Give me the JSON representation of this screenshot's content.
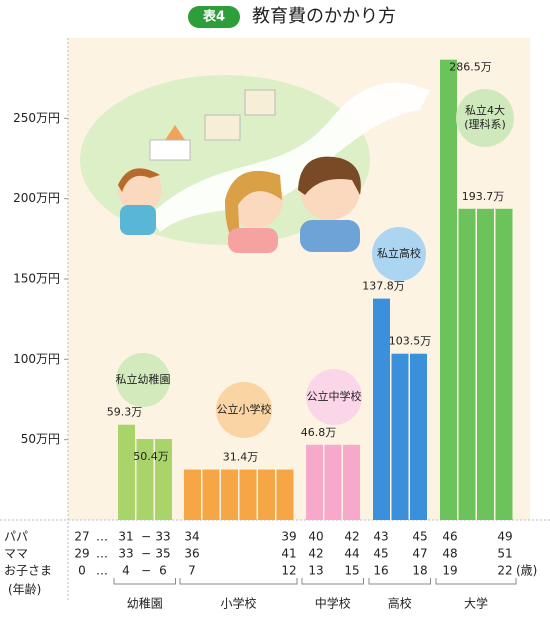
{
  "chart_data": {
    "type": "bar",
    "badge": "表4",
    "title": "教育費のかかり方",
    "ylim": [
      0,
      300
    ],
    "yticks": [
      {
        "value": 50,
        "label": "50万円"
      },
      {
        "value": 100,
        "label": "100万円"
      },
      {
        "value": 150,
        "label": "150万円"
      },
      {
        "value": 200,
        "label": "200万円"
      },
      {
        "value": 250,
        "label": "250万円"
      }
    ],
    "groups": [
      {
        "name": "幼稚園",
        "bubble": [
          "私立幼稚園"
        ],
        "color": "#a9d46a",
        "bubble_color": "#d3eabd",
        "values": [
          59.3,
          50.4,
          50.4
        ],
        "value_labels": [
          "59.3万",
          "50.4万",
          null
        ]
      },
      {
        "name": "小学校",
        "bubble": [
          "公立小学校"
        ],
        "color": "#f7a646",
        "bubble_color": "#fbd4a3",
        "values": [
          31.4,
          31.4,
          31.4,
          31.4,
          31.4,
          31.4
        ],
        "value_labels": [
          null,
          null,
          "31.4万",
          null,
          null,
          null
        ]
      },
      {
        "name": "中学校",
        "bubble": [
          "公立中学校"
        ],
        "color": "#f8a9cb",
        "bubble_color": "#fbd6e8",
        "values": [
          46.8,
          46.8,
          46.8
        ],
        "value_labels": [
          "46.8万",
          null,
          null
        ]
      },
      {
        "name": "高校",
        "bubble": [
          "私立高校"
        ],
        "color": "#3b90dc",
        "bubble_color": "#acd5f2",
        "values": [
          137.8,
          103.5,
          103.5
        ],
        "value_labels": [
          "137.8万",
          "103.5万",
          null
        ]
      },
      {
        "name": "大学",
        "bubble": [
          "私立4大",
          "(理科系)"
        ],
        "color": "#6dc35b",
        "bubble_color": "#cfe9bd",
        "values": [
          286.5,
          193.7,
          193.7,
          193.7
        ],
        "value_labels": [
          "286.5万",
          "193.7万",
          null,
          null
        ]
      }
    ],
    "age_rows": [
      {
        "label": "パパ",
        "cells": [
          "27",
          "…",
          "31",
          "−",
          "33",
          "34",
          "39",
          "40",
          "42",
          "43",
          "45",
          "46",
          "49"
        ]
      },
      {
        "label": "ママ",
        "cells": [
          "29",
          "…",
          "33",
          "−",
          "35",
          "36",
          "41",
          "42",
          "44",
          "45",
          "47",
          "48",
          "51"
        ]
      },
      {
        "label": "お子さま",
        "cells": [
          "0",
          "…",
          "4",
          "−",
          "6",
          "7",
          "12",
          "13",
          "15",
          "16",
          "18",
          "19",
          "22"
        ]
      }
    ],
    "age_unit": "(歳)",
    "age_caption": "(年齢)"
  }
}
